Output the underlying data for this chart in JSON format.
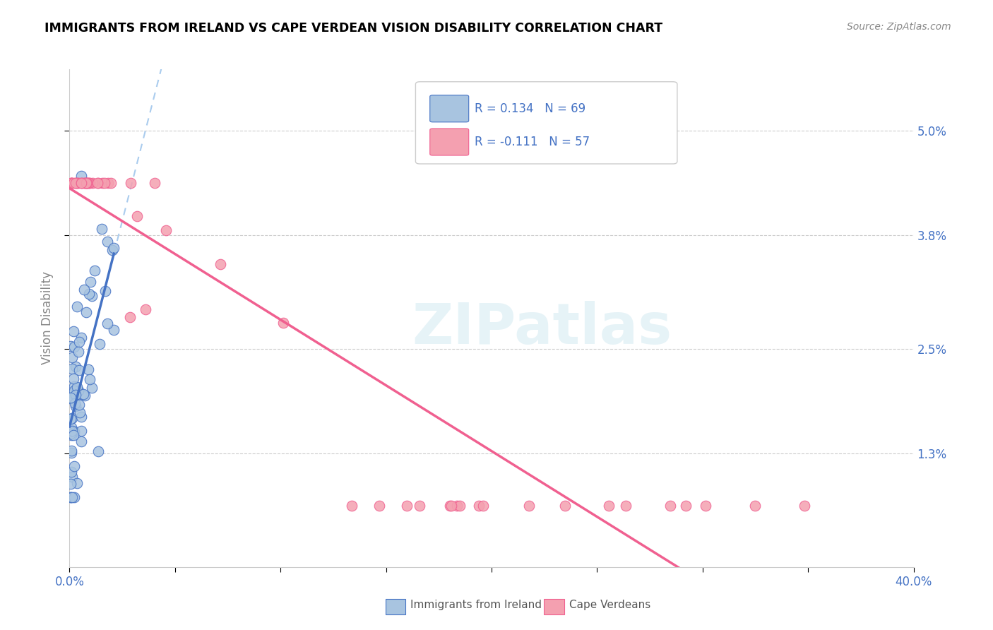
{
  "title": "IMMIGRANTS FROM IRELAND VS CAPE VERDEAN VISION DISABILITY CORRELATION CHART",
  "source": "Source: ZipAtlas.com",
  "ylabel": "Vision Disability",
  "ytick_vals": [
    0.013,
    0.025,
    0.038,
    0.05
  ],
  "ytick_labels": [
    "1.3%",
    "2.5%",
    "3.8%",
    "5.0%"
  ],
  "xtick_vals": [
    0.0,
    0.05,
    0.1,
    0.15,
    0.2,
    0.25,
    0.3,
    0.35,
    0.4
  ],
  "xlim": [
    0.0,
    0.4
  ],
  "ylim": [
    0.0,
    0.057
  ],
  "color_ireland": "#a8c4e0",
  "color_capeverde": "#f4a0b0",
  "line_color_ireland": "#4472c4",
  "line_color_capeverde": "#f06090",
  "watermark": "ZIPatlas",
  "legend_r1_text": "R = 0.134   N = 69",
  "legend_r2_text": "R = -0.111   N = 57",
  "bottom_legend1": "Immigrants from Ireland",
  "bottom_legend2": "Cape Verdeans",
  "ireland_seed": 42,
  "capeverde_seed": 7
}
